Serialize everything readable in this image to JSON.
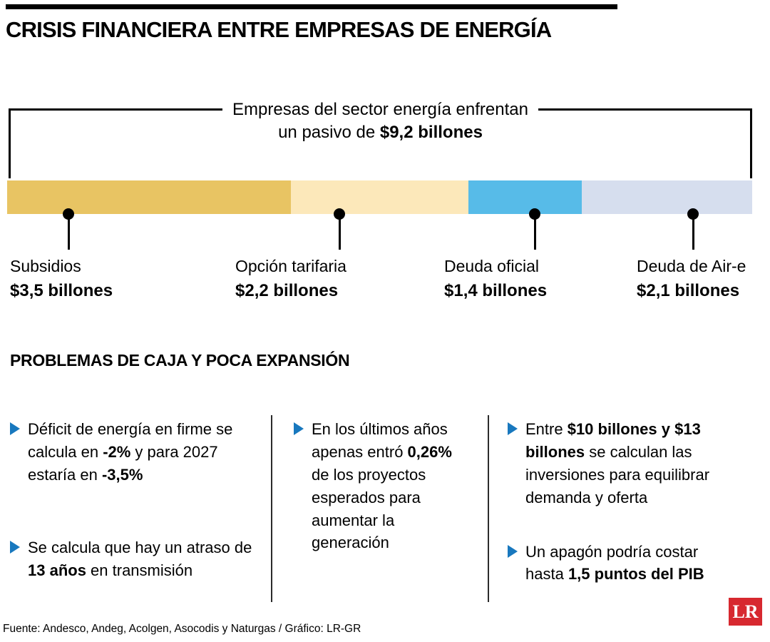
{
  "title": "CRISIS FINANCIERA ENTRE EMPRESAS DE ENERGÍA",
  "bracket": {
    "line1": "Empresas del sector energía enfrentan",
    "line2_prefix": "un pasivo de ",
    "line2_bold": "$9,2 billones"
  },
  "chart_data": {
    "type": "bar",
    "orientation": "horizontal-stacked",
    "title": "Empresas del sector energía enfrentan un pasivo de $9,2 billones",
    "total_value": 9.2,
    "total_label": "$9,2 billones",
    "unit": "billones",
    "segments": [
      {
        "label": "Subsidios",
        "value": 3.5,
        "value_label": "$3,5 billones",
        "color": "#E8C463"
      },
      {
        "label": "Opción tarifaria",
        "value": 2.2,
        "value_label": "$2,2 billones",
        "color": "#FCE8BA"
      },
      {
        "label": "Deuda oficial",
        "value": 1.4,
        "value_label": "$1,4 billones",
        "color": "#57BBE8"
      },
      {
        "label": "Deuda de Air-e",
        "value": 2.1,
        "value_label": "$2,1 billones",
        "color": "#D6DEEE"
      }
    ]
  },
  "problems": {
    "title": "PROBLEMAS DE CAJA Y POCA EXPANSIÓN",
    "accent_color": "#1878BE",
    "columns": [
      {
        "bullets": [
          {
            "parts": [
              {
                "text": "Déficit de energía en firme se calcula en ",
                "bold": false
              },
              {
                "text": "-2%",
                "bold": true
              },
              {
                "text": " y para 2027 estaría en ",
                "bold": false
              },
              {
                "text": "-3,5%",
                "bold": true
              }
            ]
          },
          {
            "parts": [
              {
                "text": "Se calcula que hay un atraso de ",
                "bold": false
              },
              {
                "text": "13 años",
                "bold": true
              },
              {
                "text": " en transmisión",
                "bold": false
              }
            ]
          }
        ]
      },
      {
        "bullets": [
          {
            "parts": [
              {
                "text": "En los últimos años apenas entró ",
                "bold": false
              },
              {
                "text": "0,26%",
                "bold": true
              },
              {
                "text": " de los proyectos esperados para aumentar la generación",
                "bold": false
              }
            ]
          }
        ]
      },
      {
        "bullets": [
          {
            "parts": [
              {
                "text": "Entre ",
                "bold": false
              },
              {
                "text": "$10 billones y $13 billones",
                "bold": true
              },
              {
                "text": " se calculan las inversiones para equilibrar demanda y oferta",
                "bold": false
              }
            ]
          },
          {
            "parts": [
              {
                "text": "Un apagón podría costar hasta ",
                "bold": false
              },
              {
                "text": "1,5 puntos del PIB",
                "bold": true
              }
            ]
          }
        ]
      }
    ]
  },
  "footer": {
    "source": "Fuente: Andesco, Andeg, Acolgen, Asocodis y Naturgas / Gráfico: LR-GR",
    "logo_text": "LR",
    "logo_color": "#D7282F"
  }
}
